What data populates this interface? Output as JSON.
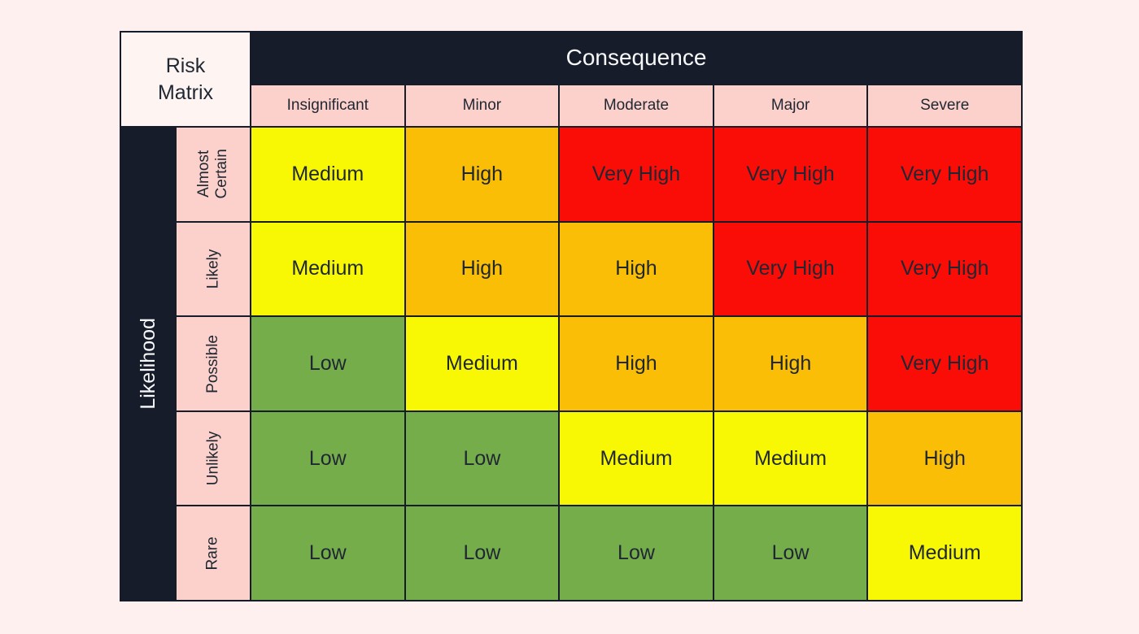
{
  "page": {
    "background_color": "#fdf0ee"
  },
  "matrix": {
    "corner_label": "Risk\nMatrix",
    "consequence_axis": {
      "label": "Consequence",
      "categories": [
        "Insignificant",
        "Minor",
        "Moderate",
        "Major",
        "Severe"
      ]
    },
    "likelihood_axis": {
      "label": "Likelihood",
      "categories": [
        "Almost\nCertain",
        "Likely",
        "Possible",
        "Unlikely",
        "Rare"
      ]
    },
    "rows": [
      {
        "likelihood": "Almost Certain",
        "cells": [
          {
            "label": "Medium",
            "level": "medium"
          },
          {
            "label": "High",
            "level": "high"
          },
          {
            "label": "Very High",
            "level": "very-high"
          },
          {
            "label": "Very High",
            "level": "very-high"
          },
          {
            "label": "Very High",
            "level": "very-high"
          }
        ]
      },
      {
        "likelihood": "Likely",
        "cells": [
          {
            "label": "Medium",
            "level": "medium"
          },
          {
            "label": "High",
            "level": "high"
          },
          {
            "label": "High",
            "level": "high"
          },
          {
            "label": "Very High",
            "level": "very-high"
          },
          {
            "label": "Very High",
            "level": "very-high"
          }
        ]
      },
      {
        "likelihood": "Possible",
        "cells": [
          {
            "label": "Low",
            "level": "low"
          },
          {
            "label": "Medium",
            "level": "medium"
          },
          {
            "label": "High",
            "level": "high"
          },
          {
            "label": "High",
            "level": "high"
          },
          {
            "label": "Very High",
            "level": "very-high"
          }
        ]
      },
      {
        "likelihood": "Unlikely",
        "cells": [
          {
            "label": "Low",
            "level": "low"
          },
          {
            "label": "Low",
            "level": "low"
          },
          {
            "label": "Medium",
            "level": "medium"
          },
          {
            "label": "Medium",
            "level": "medium"
          },
          {
            "label": "High",
            "level": "high"
          }
        ]
      },
      {
        "likelihood": "Rare",
        "cells": [
          {
            "label": "Low",
            "level": "low"
          },
          {
            "label": "Low",
            "level": "low"
          },
          {
            "label": "Low",
            "level": "low"
          },
          {
            "label": "Low",
            "level": "low"
          },
          {
            "label": "Medium",
            "level": "medium"
          }
        ]
      }
    ],
    "colors": {
      "low": "#76ad4b",
      "medium": "#f8f805",
      "high": "#fbbe06",
      "very_high": "#fb0d07",
      "header_pink": "#fcd1cb",
      "frame_dark": "#161c29",
      "corner_bg": "#fef5f3",
      "text_dark": "#1f2733",
      "text_light": "#f7f8fa"
    }
  }
}
